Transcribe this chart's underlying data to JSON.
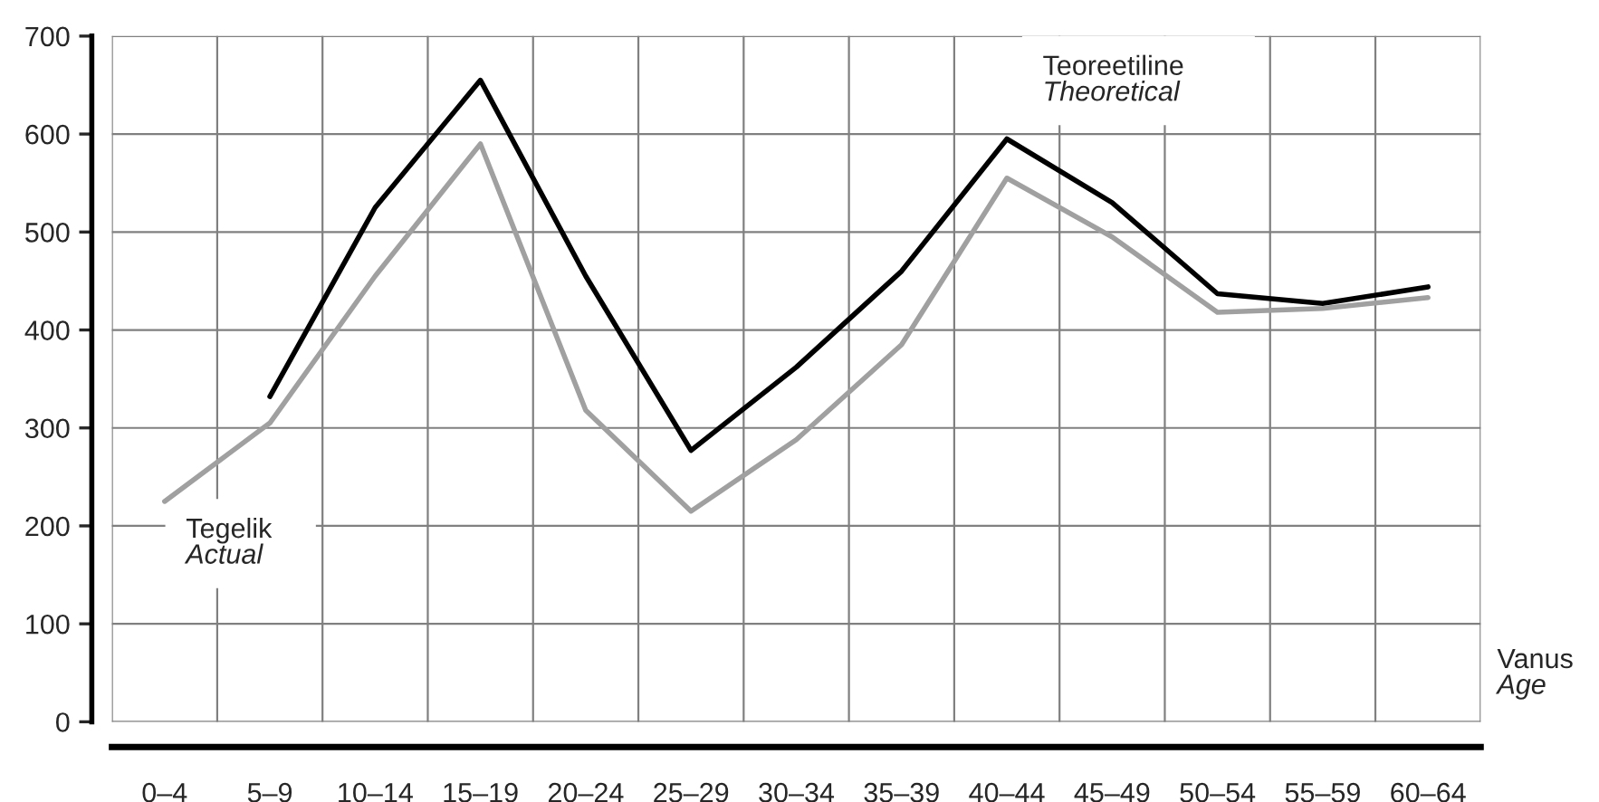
{
  "chart_data": {
    "type": "line",
    "categories": [
      "0–4",
      "5–9",
      "10–14",
      "15–19",
      "20–24",
      "25–29",
      "30–34",
      "35–39",
      "40–44",
      "45–49",
      "50–54",
      "55–59",
      "60–64"
    ],
    "series": [
      {
        "name": "Teoreetiline\nTheoretical",
        "color": "#000000",
        "values": [
          null,
          332,
          525,
          655,
          455,
          277,
          362,
          460,
          595,
          530,
          437,
          427,
          444
        ]
      },
      {
        "name": "Tegelik\nActual",
        "color": "#a0a0a0",
        "values": [
          225,
          305,
          455,
          590,
          318,
          215,
          288,
          385,
          555,
          495,
          418,
          422,
          433
        ]
      }
    ],
    "xlabel": "Vanus\nAge",
    "ylim": [
      0,
      700
    ],
    "yticks": [
      0,
      100,
      200,
      300,
      400,
      500,
      600,
      700
    ],
    "grid": true,
    "line_style": "solid",
    "marker": "none"
  }
}
